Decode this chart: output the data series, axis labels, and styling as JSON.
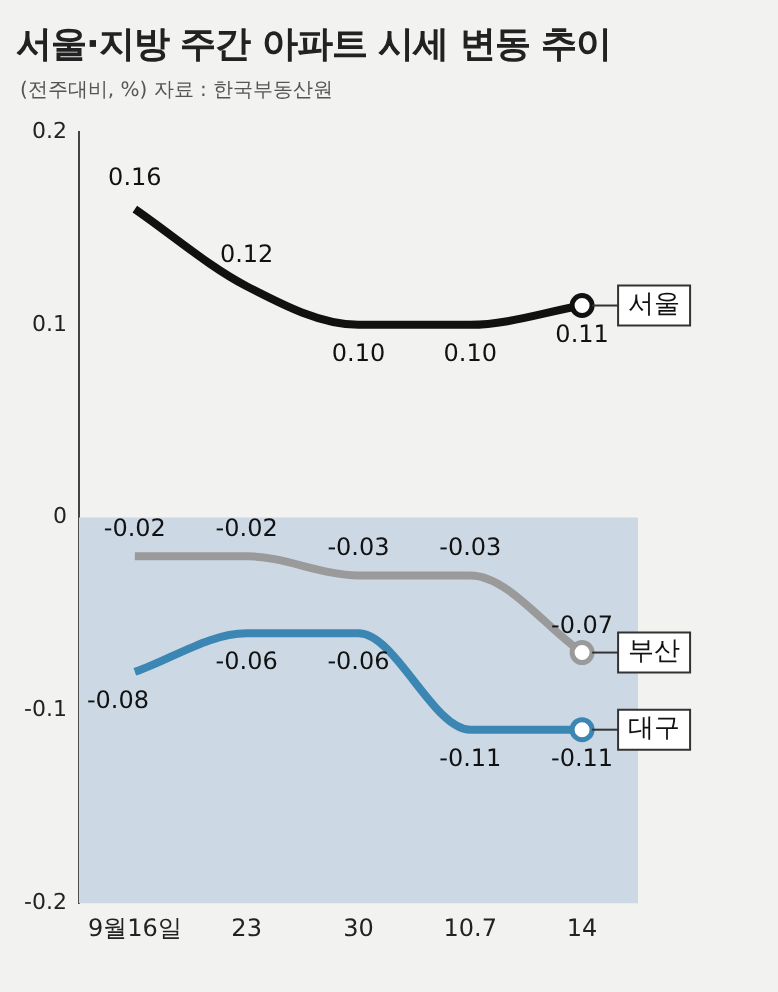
{
  "chart_data": {
    "type": "line",
    "title": "서울·지방 주간 아파트 시세 변동 추이",
    "subtitle": "(전주대비, %)  자료 : 한국부동산원",
    "categories": [
      "9월16일",
      "23",
      "30",
      "10.7",
      "14"
    ],
    "series": [
      {
        "name": "서울",
        "color": "#111111",
        "values": [
          0.16,
          0.12,
          0.1,
          0.1,
          0.11
        ],
        "value_labels": [
          "0.16",
          "0.12",
          "0.10",
          "0.10",
          "0.11"
        ]
      },
      {
        "name": "부산",
        "color": "#9a9a9a",
        "values": [
          -0.02,
          -0.02,
          -0.03,
          -0.03,
          -0.07
        ],
        "value_labels": [
          "-0.02",
          "-0.02",
          "-0.03",
          "-0.03",
          "-0.07"
        ]
      },
      {
        "name": "대구",
        "color": "#3c86b4",
        "values": [
          -0.08,
          -0.06,
          -0.06,
          -0.11,
          -0.11
        ],
        "value_labels": [
          "-0.08",
          "-0.06",
          "-0.06",
          "-0.11",
          "-0.11"
        ]
      }
    ],
    "ylim": [
      -0.2,
      0.2
    ],
    "yticks": [
      {
        "value": -0.2,
        "label": "-0.2"
      },
      {
        "value": -0.1,
        "label": "-0.1"
      },
      0,
      0.1,
      0.2
    ],
    "bands": [
      {
        "axis": "y",
        "from": 0,
        "to": -0.2,
        "color": "#ccd9e5"
      }
    ],
    "grid": false,
    "legend": false
  }
}
